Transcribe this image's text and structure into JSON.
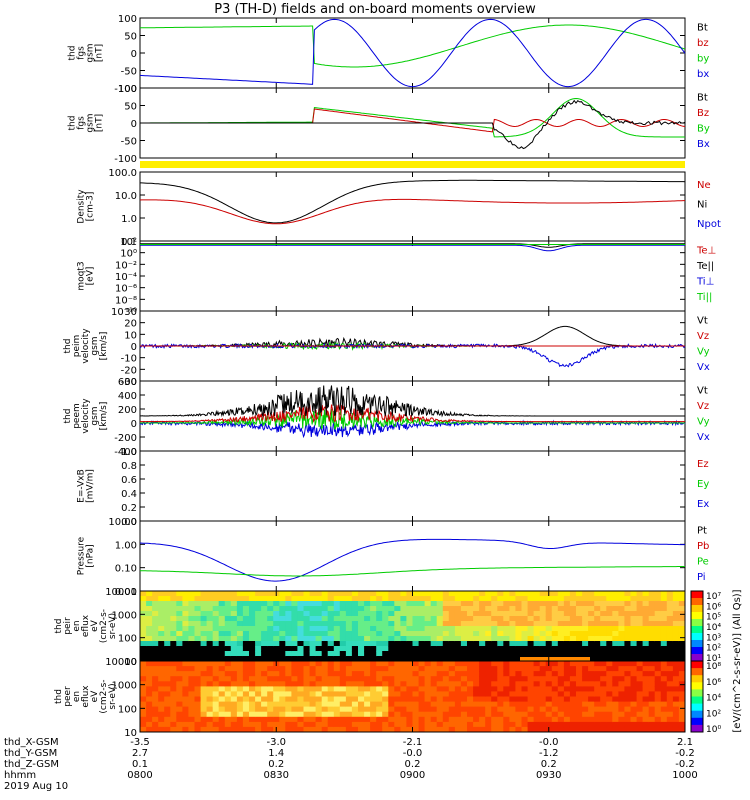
{
  "title": "P3 (TH-D) fields and on-board moments overview",
  "colors": {
    "black": "#000000",
    "red": "#cc0000",
    "green": "#00cc00",
    "blue": "#0000dd",
    "yellow": "#ffee00"
  },
  "chart_data": {
    "type": "line",
    "time_axis": {
      "ticks": [
        "0800",
        "0830",
        "0900",
        "0930",
        "1000"
      ],
      "rows": [
        {
          "label": "thd_X-GSM",
          "values": [
            "-3.5",
            "-3.0",
            "-2.1",
            "-0.0",
            "2.1"
          ]
        },
        {
          "label": "thd_Y-GSM",
          "values": [
            "2.7",
            "1.4",
            "-0.0",
            "-1.2",
            "-0.2"
          ]
        },
        {
          "label": "thd_Z-GSM",
          "values": [
            "0.1",
            "0.2",
            "0.2",
            "0.2",
            "-0.2"
          ]
        },
        {
          "label": "hhmm",
          "values": [
            "0800",
            "0830",
            "0900",
            "0930",
            "1000"
          ]
        }
      ],
      "date": "2019 Aug 10"
    },
    "panels": [
      {
        "id": "fgs",
        "ylabel": [
          "thd",
          "fgs",
          "gsm",
          "[nT]"
        ],
        "yticks": [
          "100",
          "50",
          "0",
          "-50",
          "-100"
        ],
        "ylim": [
          -100,
          100
        ],
        "legend": [
          {
            "name": "Bt",
            "color": "black"
          },
          {
            "name": "bz",
            "color": "red"
          },
          {
            "name": "by",
            "color": "green"
          },
          {
            "name": "bx",
            "color": "blue"
          }
        ]
      },
      {
        "id": "fgs-dsl",
        "ylabel": [
          "thd",
          "fgs",
          "gsm",
          "[nT]"
        ],
        "yticks": [
          "100",
          "50",
          "0",
          "-50",
          "-100"
        ],
        "ylim": [
          -120,
          120
        ],
        "legend": [
          {
            "name": "Bt",
            "color": "black"
          },
          {
            "name": "Bz",
            "color": "red"
          },
          {
            "name": "By",
            "color": "green"
          },
          {
            "name": "Bx",
            "color": "blue"
          }
        ]
      },
      {
        "id": "density",
        "ylabel": [
          "Density",
          "[cm-3]"
        ],
        "yticks": [
          "100.0",
          "10.0",
          "1.0",
          "0.1"
        ],
        "log": true,
        "legend": [
          {
            "name": "Ne",
            "color": "red"
          },
          {
            "name": "Ni",
            "color": "black"
          },
          {
            "name": "Npot",
            "color": "blue"
          }
        ]
      },
      {
        "id": "temp",
        "ylabel": [
          "moqt3",
          "[eV]"
        ],
        "yticks": [
          "10²",
          "10⁰",
          "10⁻²",
          "10⁻⁴",
          "10⁻⁶",
          "10⁻⁸",
          "10⁻¹⁰"
        ],
        "log": true,
        "legend": [
          {
            "name": "Te⊥",
            "color": "red"
          },
          {
            "name": "Te||",
            "color": "black"
          },
          {
            "name": "Ti⊥",
            "color": "blue"
          },
          {
            "name": "Ti||",
            "color": "green"
          }
        ]
      },
      {
        "id": "peim",
        "ylabel": [
          "thd",
          "peim",
          "velocity",
          "gsm",
          "[km/s]"
        ],
        "yticks": [
          "30",
          "20",
          "10",
          "0",
          "-10",
          "-20",
          "-30"
        ],
        "ylim": [
          -30,
          30
        ],
        "legend": [
          {
            "name": "Vt",
            "color": "black"
          },
          {
            "name": "Vz",
            "color": "red"
          },
          {
            "name": "Vy",
            "color": "green"
          },
          {
            "name": "Vx",
            "color": "blue"
          }
        ]
      },
      {
        "id": "peem",
        "ylabel": [
          "thd",
          "peem",
          "velocity",
          "gsm",
          "[km/s]"
        ],
        "yticks": [
          "600",
          "400",
          "200",
          "0",
          "-200",
          "-400"
        ],
        "ylim": [
          -400,
          600
        ],
        "legend": [
          {
            "name": "Vt",
            "color": "black"
          },
          {
            "name": "Vz",
            "color": "red"
          },
          {
            "name": "Vy",
            "color": "green"
          },
          {
            "name": "Vx",
            "color": "blue"
          }
        ]
      },
      {
        "id": "efield",
        "ylabel": [
          "E=-VxB",
          "[mV/m]"
        ],
        "yticks": [
          "1.0",
          "0.8",
          "0.6",
          "0.4",
          "0.2",
          "0.0"
        ],
        "ylim": [
          0,
          1
        ],
        "legend": [
          {
            "name": "Ez",
            "color": "red"
          },
          {
            "name": "Ey",
            "color": "green"
          },
          {
            "name": "Ex",
            "color": "blue"
          }
        ]
      },
      {
        "id": "pressure",
        "ylabel": [
          "Pressure",
          "[nPa]"
        ],
        "yticks": [
          "10.00",
          "1.00",
          "0.10",
          "0.01"
        ],
        "log": true,
        "legend": [
          {
            "name": "Pt",
            "color": "black"
          },
          {
            "name": "Pb",
            "color": "red"
          },
          {
            "name": "Pe",
            "color": "green"
          },
          {
            "name": "Pi",
            "color": "blue"
          }
        ]
      },
      {
        "id": "peir",
        "ylabel": [
          "thd",
          "peir",
          "en",
          "eflux",
          "eV",
          "(cm2-s-",
          "sr-eV)"
        ],
        "yticks": [
          "10000",
          "1000",
          "100",
          "10"
        ],
        "type": "heatmap"
      },
      {
        "id": "peer",
        "ylabel": [
          "thd",
          "peer",
          "en",
          "eflux",
          "eV",
          "(cm2-s-",
          "sr-eV)"
        ],
        "yticks": [
          "10000",
          "1000",
          "100",
          "10"
        ],
        "type": "heatmap"
      }
    ],
    "colorbars": [
      {
        "ticks": [
          "10⁷",
          "10⁶",
          "10⁵",
          "10⁴",
          "10³",
          "10²",
          "10¹"
        ]
      },
      {
        "ticks": [
          "10⁸",
          "10⁶",
          "10⁴",
          "10²",
          "10⁰"
        ]
      }
    ],
    "colorbar_label": "[eV/(cm^2-s-sr-eV)] (All Qs)]"
  }
}
